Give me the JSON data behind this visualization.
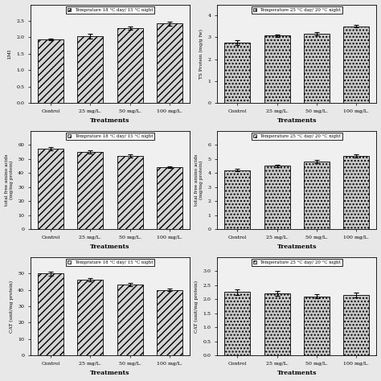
{
  "categories": [
    "Control",
    "25 mg/L.",
    "50 mg/L.",
    "100 mg/L."
  ],
  "panels": [
    {
      "title": "Temprature 18 °C day/ 15 °C night",
      "ylabel": "LMI",
      "values": [
        1.93,
        2.03,
        2.27,
        2.42
      ],
      "errors": [
        0.03,
        0.07,
        0.05,
        0.06
      ],
      "ylim": [
        0,
        3.0
      ],
      "yticks": [
        0,
        0.5,
        1.0,
        1.5,
        2.0,
        2.5
      ],
      "hatch": "////",
      "row": 0,
      "col": 0
    },
    {
      "title": "Temperature 25 °C day/ 20 °C night",
      "ylabel": "TS Protein (mg/g fw)",
      "values": [
        2.75,
        3.07,
        3.15,
        3.5
      ],
      "errors": [
        0.12,
        0.04,
        0.08,
        0.06
      ],
      "ylim": [
        0,
        4.5
      ],
      "yticks": [
        0,
        1,
        2,
        3,
        4
      ],
      "hatch": "....",
      "row": 0,
      "col": 1
    },
    {
      "title": "Temprature 18 °C day/ 15 °C night",
      "ylabel": "total free amino acids\n(mg/mg protein)",
      "values": [
        57,
        55,
        52,
        44
      ],
      "errors": [
        1.2,
        1.3,
        1.0,
        0.7
      ],
      "ylim": [
        0,
        70
      ],
      "yticks": [
        0,
        10,
        20,
        30,
        40,
        50,
        60
      ],
      "hatch": "////",
      "row": 1,
      "col": 0
    },
    {
      "title": "Temperature 25 °C day/ 20 °C night",
      "ylabel": "total free amino acids\n(mg/mg protein)",
      "values": [
        4.2,
        4.5,
        4.8,
        5.2
      ],
      "errors": [
        0.1,
        0.1,
        0.12,
        0.1
      ],
      "ylim": [
        0,
        7
      ],
      "yticks": [
        0,
        1,
        2,
        3,
        4,
        5,
        6
      ],
      "hatch": "....",
      "row": 1,
      "col": 1
    },
    {
      "title": "Temprature 18 °C day/ 15 °C night",
      "ylabel": "CAT (unit/mg protein)",
      "values": [
        50,
        46,
        43,
        40
      ],
      "errors": [
        1.2,
        1.0,
        1.0,
        0.7
      ],
      "ylim": [
        0,
        60
      ],
      "yticks": [
        0,
        10,
        20,
        30,
        40,
        50
      ],
      "hatch": "////",
      "row": 2,
      "col": 0
    },
    {
      "title": "Temperature 25 °C day/ 20 °C night",
      "ylabel": "CAT (unit/mg protein)",
      "values": [
        2.25,
        2.2,
        2.1,
        2.15
      ],
      "errors": [
        0.1,
        0.08,
        0.07,
        0.08
      ],
      "ylim": [
        0,
        3.5
      ],
      "yticks": [
        0,
        0.5,
        1.0,
        1.5,
        2.0,
        2.5,
        3.0
      ],
      "hatch": "....",
      "row": 2,
      "col": 1
    }
  ],
  "bar_color_left": "#d4d4d4",
  "bar_color_right": "#c8c8c8",
  "bar_edgecolor": "#000000",
  "xlabel": "Treatments",
  "figure_bg": "#e8e8e8"
}
